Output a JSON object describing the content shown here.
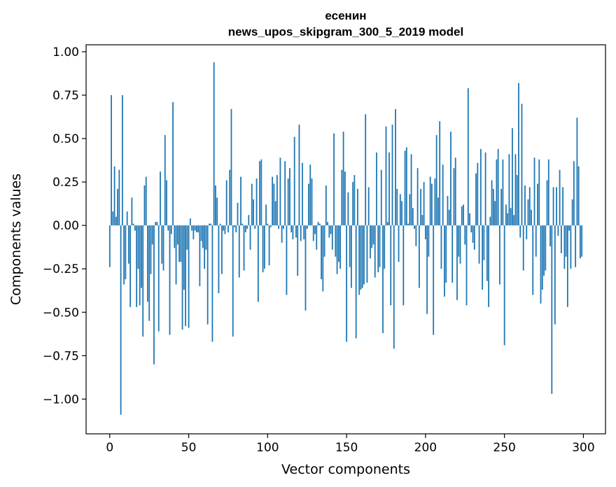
{
  "chart_data": {
    "type": "bar",
    "title_line1": "есенин",
    "title_line2": "news_upos_skipgram_300_5_2019 model",
    "xlabel": "Vector components",
    "ylabel": "Components values",
    "xlim": [
      -15,
      314
    ],
    "ylim": [
      -1.2,
      1.04
    ],
    "xticks": [
      0,
      50,
      100,
      150,
      200,
      250,
      300
    ],
    "xtick_labels": [
      "0",
      "50",
      "100",
      "150",
      "200",
      "250",
      "300"
    ],
    "yticks": [
      1.0,
      0.75,
      0.5,
      0.25,
      0.0,
      -0.25,
      -0.5,
      -0.75,
      -1.0
    ],
    "ytick_labels": [
      "1.00",
      "0.75",
      "0.50",
      "0.25",
      "0.00",
      "−0.25",
      "−0.50",
      "−0.75",
      "−1.00"
    ],
    "bar_color": "#1f77b4",
    "grid": false,
    "values": [
      -0.24,
      0.75,
      0.08,
      0.34,
      0.05,
      0.21,
      0.32,
      -1.09,
      0.75,
      -0.34,
      -0.31,
      0.08,
      -0.22,
      -0.47,
      0.16,
      0.01,
      -0.03,
      -0.47,
      -0.25,
      -0.46,
      -0.36,
      -0.64,
      0.23,
      0.28,
      -0.44,
      -0.55,
      -0.28,
      -0.11,
      -0.8,
      0.02,
      0.02,
      -0.61,
      0.31,
      -0.22,
      -0.26,
      0.52,
      0.26,
      -0.03,
      -0.63,
      -0.05,
      0.71,
      -0.13,
      -0.34,
      -0.11,
      -0.21,
      -0.21,
      -0.6,
      -0.37,
      -0.58,
      -0.14,
      -0.59,
      0.04,
      -0.03,
      -0.08,
      -0.03,
      -0.04,
      -0.04,
      -0.35,
      -0.09,
      -0.13,
      -0.25,
      -0.14,
      -0.57,
      0.01,
      0.01,
      -0.67,
      0.94,
      0.23,
      0.16,
      -0.39,
      0.01,
      -0.28,
      -0.03,
      -0.05,
      0.26,
      -0.04,
      0.32,
      0.67,
      -0.64,
      -0.01,
      -0.04,
      0.13,
      -0.3,
      0.28,
      0.01,
      -0.26,
      -0.04,
      -0.02,
      0.06,
      -0.14,
      0.24,
      0.15,
      -0.02,
      0.27,
      -0.44,
      0.37,
      0.38,
      -0.27,
      -0.25,
      0.12,
      0.01,
      -0.23,
      -0.01,
      0.28,
      0.24,
      0.14,
      0.29,
      -0.02,
      0.39,
      -0.1,
      -0.02,
      0.37,
      -0.4,
      0.27,
      0.33,
      -0.04,
      -0.08,
      0.51,
      -0.07,
      -0.29,
      0.58,
      -0.09,
      0.36,
      -0.08,
      -0.49,
      -0.02,
      0.24,
      0.35,
      0.27,
      -0.09,
      -0.05,
      -0.14,
      0.02,
      0.01,
      -0.31,
      -0.38,
      -0.18,
      0.23,
      0.02,
      -0.07,
      -0.05,
      -0.14,
      0.53,
      -0.18,
      -0.28,
      -0.21,
      -0.25,
      0.32,
      0.54,
      0.31,
      -0.67,
      0.19,
      -0.24,
      -0.36,
      0.25,
      0.29,
      -0.65,
      0.21,
      -0.4,
      -0.37,
      -0.36,
      -0.34,
      0.64,
      -0.33,
      0.22,
      -0.19,
      -0.13,
      -0.11,
      -0.3,
      0.42,
      -0.27,
      -0.24,
      0.32,
      -0.62,
      -0.25,
      0.57,
      0.02,
      0.42,
      -0.46,
      0.58,
      -0.71,
      0.67,
      0.21,
      -0.21,
      0.18,
      0.14,
      -0.46,
      0.43,
      0.45,
      0.01,
      0.18,
      0.41,
      0.1,
      -0.02,
      -0.12,
      0.33,
      -0.36,
      0.21,
      0.06,
      0.25,
      -0.08,
      -0.51,
      -0.18,
      0.28,
      0.24,
      -0.63,
      0.27,
      0.52,
      0.16,
      0.6,
      -0.25,
      0.35,
      -0.41,
      -0.33,
      0.17,
      0.09,
      0.54,
      -0.33,
      0.33,
      0.39,
      -0.43,
      -0.18,
      -0.22,
      0.11,
      0.12,
      -0.11,
      -0.46,
      0.79,
      0.07,
      -0.04,
      -0.1,
      -0.14,
      0.3,
      0.36,
      -0.22,
      0.44,
      -0.37,
      -0.2,
      0.42,
      -0.32,
      -0.47,
      0.05,
      0.26,
      0.21,
      0.14,
      0.38,
      0.44,
      -0.34,
      0.21,
      0.38,
      -0.69,
      0.12,
      0.07,
      0.41,
      0.1,
      0.56,
      0.06,
      0.41,
      0.29,
      0.82,
      -0.07,
      0.7,
      -0.26,
      0.23,
      -0.08,
      0.15,
      0.22,
      0.09,
      -0.4,
      0.39,
      -0.18,
      0.24,
      0.38,
      -0.45,
      -0.37,
      -0.29,
      -0.26,
      0.26,
      0.38,
      -0.12,
      -0.97,
      0.22,
      -0.57,
      0.22,
      -0.06,
      0.32,
      -0.16,
      0.22,
      -0.25,
      -0.18,
      -0.47,
      -0.03,
      -0.25,
      0.15,
      0.37,
      -0.24,
      0.62,
      0.34,
      -0.19,
      -0.18
    ]
  }
}
